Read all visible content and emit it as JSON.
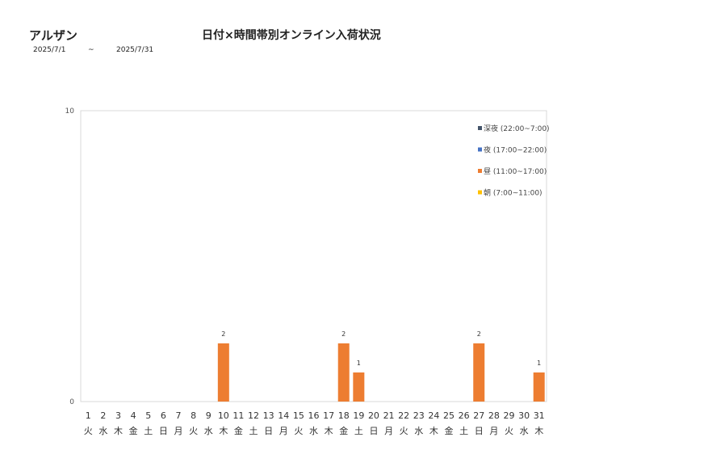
{
  "header": {
    "store_name": "アルザン",
    "title": "日付×時間帯別オンライン入荷状況",
    "date_from": "2025/7/1",
    "date_sep": "~",
    "date_to": "2025/7/31"
  },
  "chart_data": {
    "type": "bar",
    "stacked": true,
    "ylim": [
      0,
      10
    ],
    "y_ticks": [
      "0",
      "10"
    ],
    "grid": false,
    "legend_position": "top-right",
    "categories": [
      "1",
      "2",
      "3",
      "4",
      "5",
      "6",
      "7",
      "8",
      "9",
      "10",
      "11",
      "12",
      "13",
      "14",
      "15",
      "16",
      "17",
      "18",
      "19",
      "20",
      "21",
      "22",
      "23",
      "24",
      "25",
      "26",
      "27",
      "28",
      "29",
      "30",
      "31"
    ],
    "weekdays": [
      "火",
      "水",
      "木",
      "金",
      "土",
      "日",
      "月",
      "火",
      "水",
      "木",
      "金",
      "土",
      "日",
      "月",
      "火",
      "水",
      "木",
      "金",
      "土",
      "日",
      "月",
      "火",
      "水",
      "木",
      "金",
      "土",
      "日",
      "月",
      "火",
      "水",
      "木"
    ],
    "series": [
      {
        "name": "深夜 (22:00~7:00)",
        "color": "#44546a",
        "values": [
          0,
          0,
          0,
          0,
          0,
          0,
          0,
          0,
          0,
          0,
          0,
          0,
          0,
          0,
          0,
          0,
          0,
          0,
          0,
          0,
          0,
          0,
          0,
          0,
          0,
          0,
          0,
          0,
          0,
          0,
          0
        ]
      },
      {
        "name": "夜 (17:00~22:00)",
        "color": "#4472c4",
        "values": [
          0,
          0,
          0,
          0,
          0,
          0,
          0,
          0,
          0,
          0,
          0,
          0,
          0,
          0,
          0,
          0,
          0,
          0,
          0,
          0,
          0,
          0,
          0,
          0,
          0,
          0,
          0,
          0,
          0,
          0,
          0
        ]
      },
      {
        "name": "昼 (11:00~17:00)",
        "color": "#ed7d31",
        "values": [
          0,
          0,
          0,
          0,
          0,
          0,
          0,
          0,
          0,
          2,
          0,
          0,
          0,
          0,
          0,
          0,
          0,
          2,
          1,
          0,
          0,
          0,
          0,
          0,
          0,
          0,
          2,
          0,
          0,
          0,
          1
        ]
      },
      {
        "name": "朝 (7:00~11:00)",
        "color": "#ffc000",
        "values": [
          0,
          0,
          0,
          0,
          0,
          0,
          0,
          0,
          0,
          0,
          0,
          0,
          0,
          0,
          0,
          0,
          0,
          0,
          0,
          0,
          0,
          0,
          0,
          0,
          0,
          0,
          0,
          0,
          0,
          0,
          0
        ]
      }
    ],
    "data_labels": [
      "",
      "",
      "",
      "",
      "",
      "",
      "",
      "",
      "",
      "2",
      "",
      "",
      "",
      "",
      "",
      "",
      "",
      "2",
      "1",
      "",
      "",
      "",
      "",
      "",
      "",
      "",
      "2",
      "",
      "",
      "",
      "1"
    ]
  }
}
